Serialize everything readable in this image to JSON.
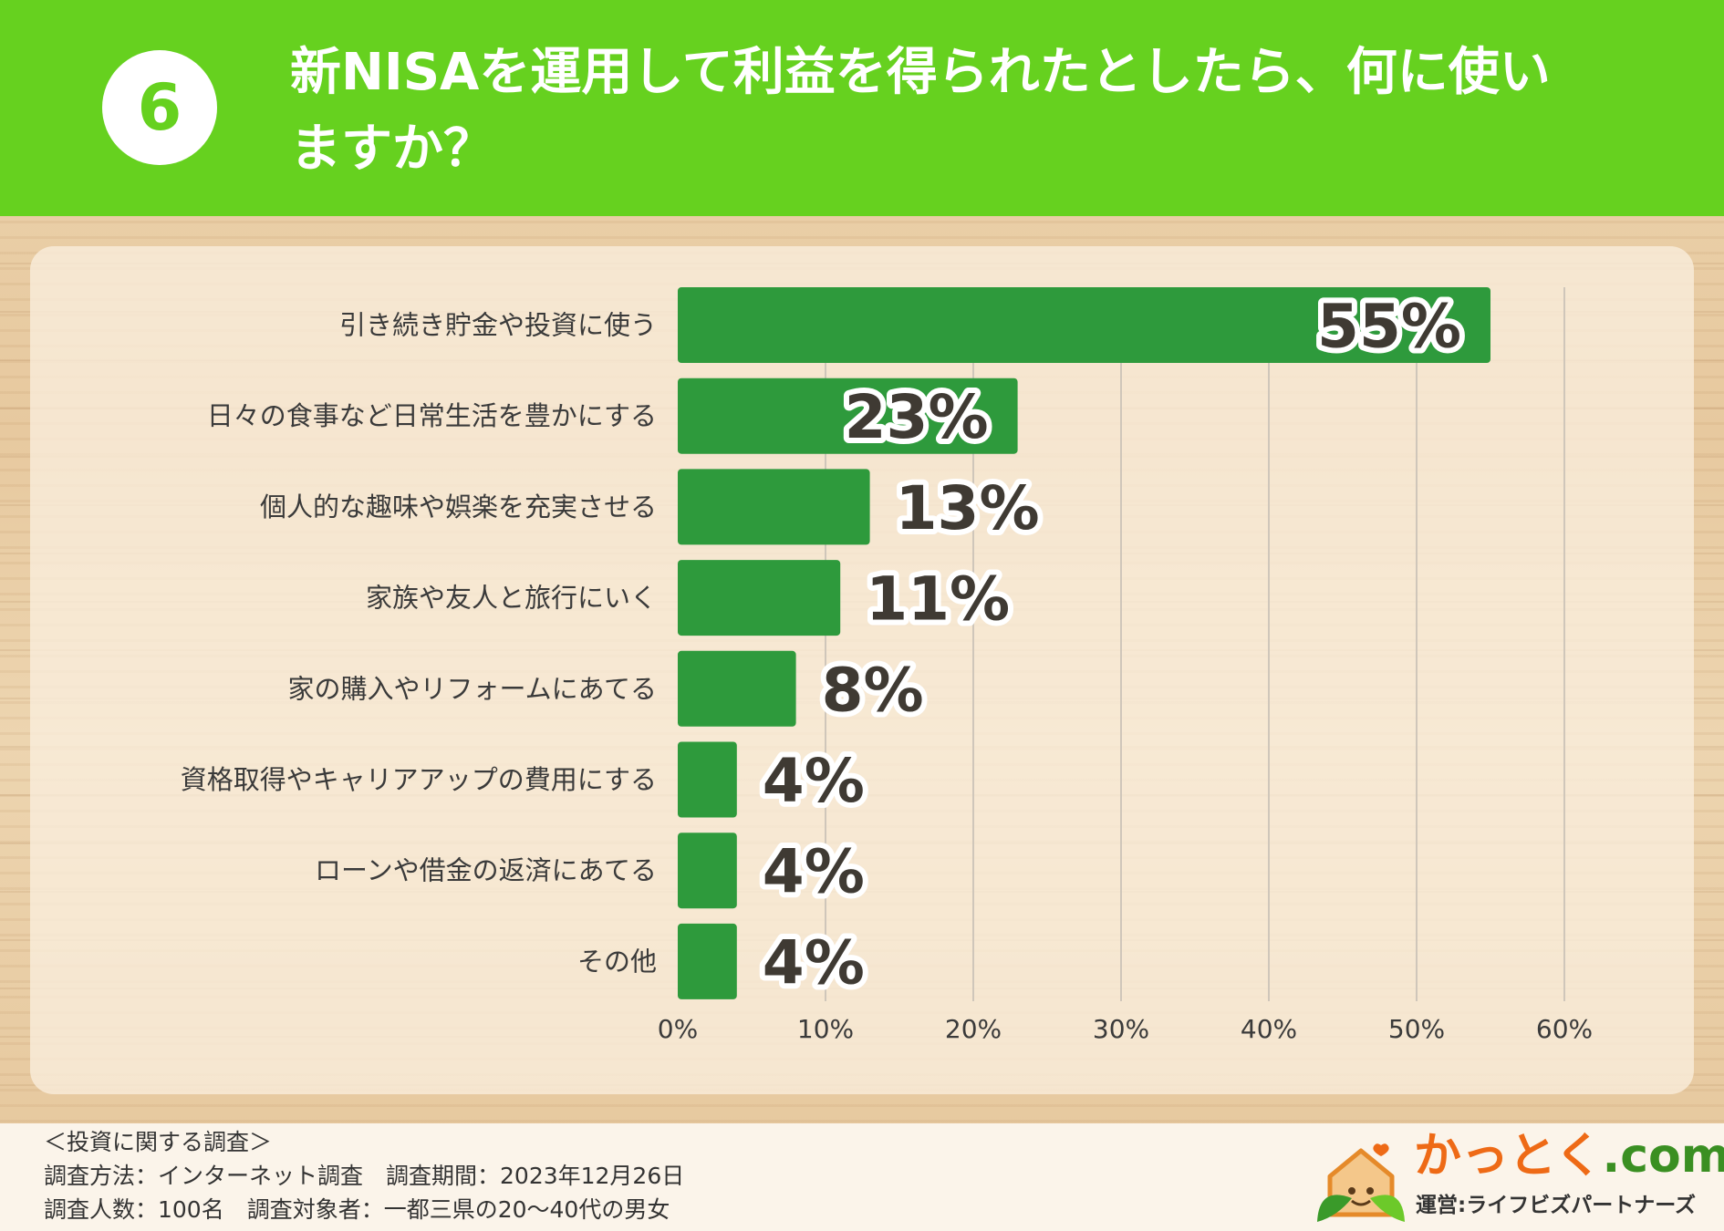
{
  "header": {
    "number": "6",
    "title_line1": "新NISAを運用して利益を得られたとしたら、何に使い",
    "title_line2": "ますか？"
  },
  "colors": {
    "header_green": "#66d11f",
    "bar_green": "#2e9a3c",
    "label_text": "#3a3a3a",
    "value_text": "#3f3a33"
  },
  "chart_data": {
    "type": "bar",
    "orientation": "horizontal",
    "title": "新NISAを運用して利益を得られたとしたら、何に使いますか？",
    "categories": [
      "引き続き貯金や投資に使う",
      "日々の食事など日常生活を豊かにする",
      "個人的な趣味や娯楽を充実させる",
      "家族や友人と旅行にいく",
      "家の購入やリフォームにあてる",
      "資格取得やキャリアアップの費用にする",
      "ローンや借金の返済にあてる",
      "その他"
    ],
    "values": [
      55,
      23,
      13,
      11,
      8,
      4,
      4,
      4
    ],
    "value_labels": [
      "55%",
      "23%",
      "13%",
      "11%",
      "8%",
      "4%",
      "4%",
      "4%"
    ],
    "xlim": [
      0,
      60
    ],
    "xticks": [
      "0%",
      "10%",
      "20%",
      "30%",
      "40%",
      "50%",
      "60%"
    ],
    "xlabel": "",
    "ylabel": "",
    "grid": true
  },
  "footer": {
    "survey_title": "＜投資に関する調査＞",
    "line1": "調査方法：インターネット調査　調査期間：2023年12月26日",
    "line2": "調査人数：100名　調査対象者：一都三県の20〜40代の男女"
  },
  "logo": {
    "name_main": "かっとく",
    "name_suffix": ".com",
    "operator": "運営:ライフビズパートナーズ"
  }
}
